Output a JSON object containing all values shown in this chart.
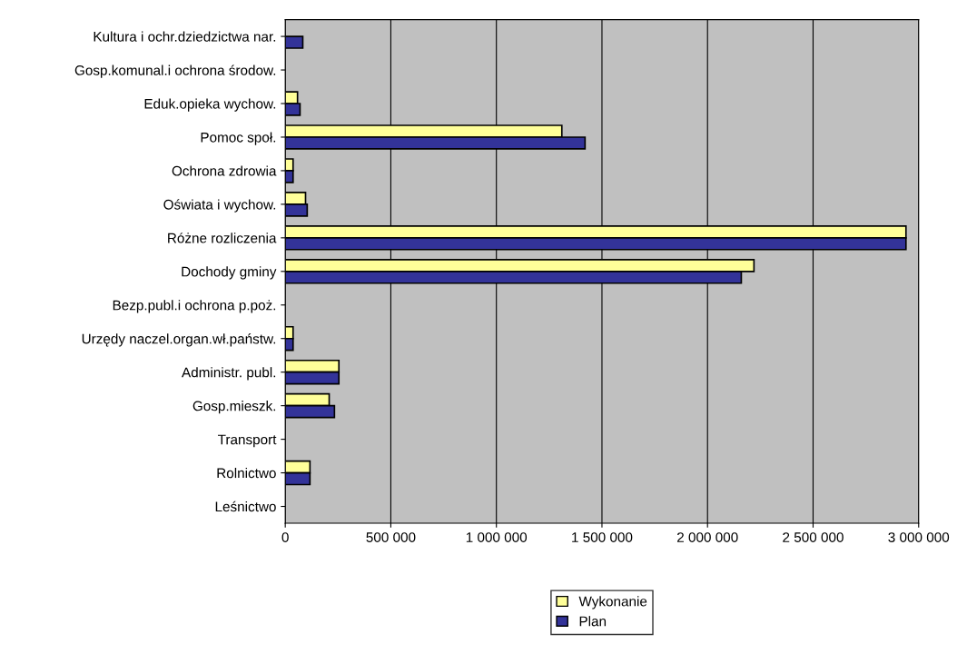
{
  "chart_data": {
    "type": "bar",
    "orientation": "horizontal",
    "categories": [
      "Kultura i ochr.dziedzictwa nar.",
      "Gosp.komunal.i ochrona środow.",
      "Eduk.opieka wychow.",
      "Pomoc społ.",
      "Ochrona zdrowia",
      "Oświata i wychow.",
      "Różne rozliczenia",
      "Dochody gminy",
      "Bezp.publ.i ochrona p.poż.",
      "Urzędy naczel.organ.wł.państw.",
      "Administr. publ.",
      "Gosp.mieszk.",
      "Transport",
      "Rolnictwo",
      "Leśnictwo"
    ],
    "series": [
      {
        "name": "Wykonanie",
        "color": "#ffff99",
        "values": [
          0,
          0,
          58000,
          1310000,
          37000,
          96000,
          2940000,
          2220000,
          0,
          37000,
          254000,
          208000,
          0,
          117000,
          0
        ]
      },
      {
        "name": "Plan",
        "color": "#333399",
        "values": [
          83000,
          0,
          70000,
          1420000,
          37000,
          104000,
          2940000,
          2160000,
          0,
          37000,
          254000,
          233000,
          0,
          117000,
          0
        ]
      }
    ],
    "xlim": [
      0,
      3000000
    ],
    "xticks": [
      {
        "value": 0,
        "label": "0"
      },
      {
        "value": 500000,
        "label": "500 000"
      },
      {
        "value": 1000000,
        "label": "1 000 000"
      },
      {
        "value": 1500000,
        "label": "1 500 000"
      },
      {
        "value": 2000000,
        "label": "2 000 000"
      },
      {
        "value": 2500000,
        "label": "2 500 000"
      },
      {
        "value": 3000000,
        "label": "3 000 000"
      }
    ],
    "grid": "x",
    "legend": "bottom"
  }
}
